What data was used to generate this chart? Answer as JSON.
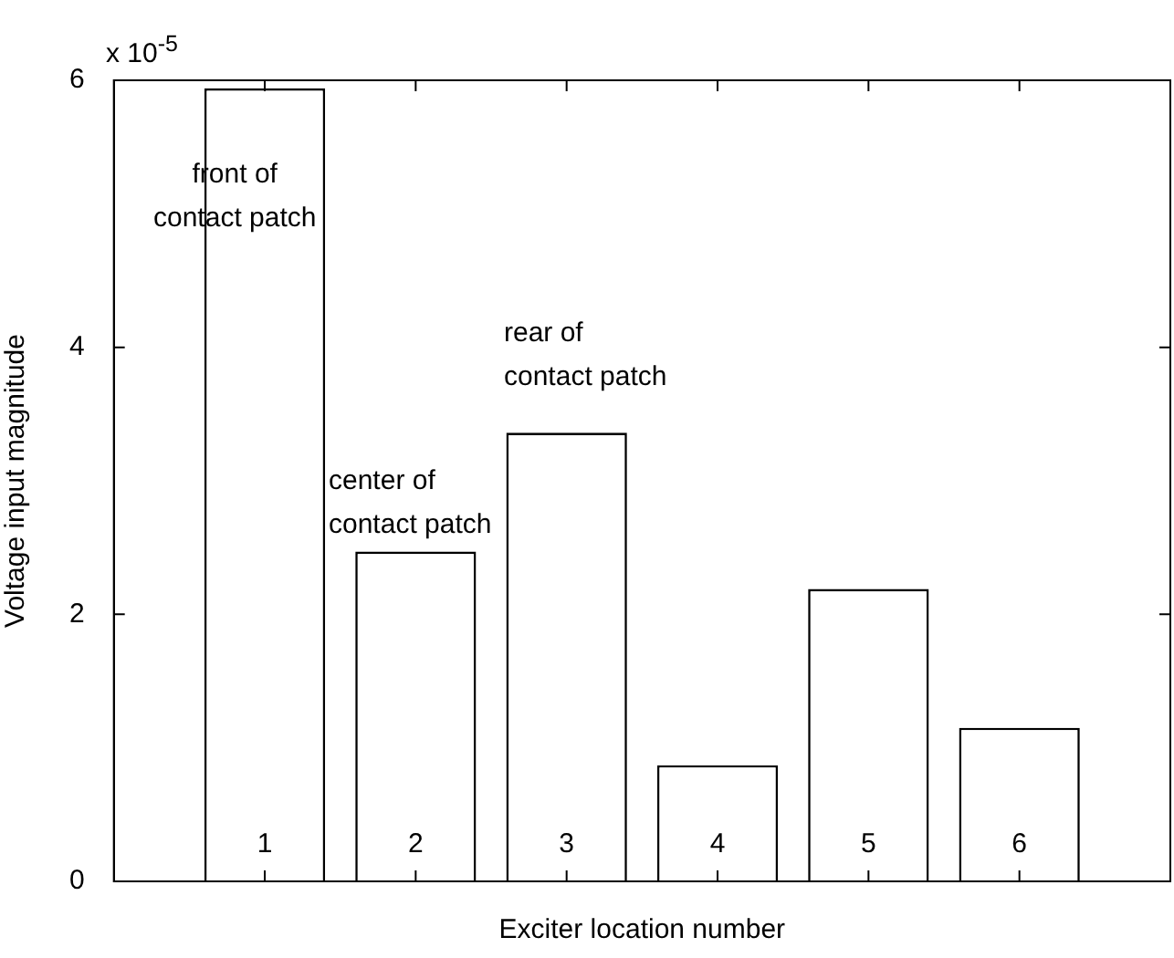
{
  "chart_data": {
    "type": "bar",
    "xlabel": "Exciter location number",
    "ylabel": "Voltage input magnitude",
    "x": [
      1,
      2,
      3,
      4,
      5,
      6
    ],
    "values": [
      5.94,
      2.47,
      3.36,
      0.87,
      2.19,
      1.15
    ],
    "color": "#ffffff",
    "xlim": [
      0,
      7
    ],
    "xticks": [
      1,
      2,
      3,
      4,
      5,
      6
    ],
    "ylim": [
      0,
      6
    ],
    "yticks": [
      0,
      2,
      4,
      6
    ],
    "annotations": [
      "x 10$^{-5}$",
      "front of\ncontact patch",
      "center of\ncontact patch",
      "rear of\ncontact patch"
    ]
  }
}
